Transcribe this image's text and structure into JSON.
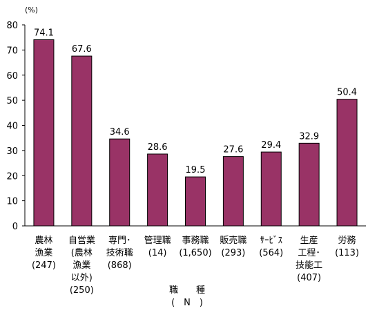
{
  "chart_data": {
    "type": "bar",
    "unit": "(%)",
    "categories": [
      {
        "lines": [
          "農林",
          "漁業",
          "(247)"
        ]
      },
      {
        "lines": [
          "自営業",
          "(農林",
          "漁業",
          "以外)",
          "(250)"
        ]
      },
      {
        "lines": [
          "専門･",
          "技術職",
          "(868)"
        ]
      },
      {
        "lines": [
          "管理職",
          "(14)"
        ]
      },
      {
        "lines": [
          "事務職",
          "(1,650)"
        ]
      },
      {
        "lines": [
          "販売職",
          "(293)"
        ]
      },
      {
        "lines": [
          "ｻｰﾋﾞｽ",
          "(564)"
        ]
      },
      {
        "lines": [
          "生産",
          "工程･",
          "技能工",
          "(407)"
        ]
      },
      {
        "lines": [
          "労務",
          "(113)"
        ]
      }
    ],
    "values": [
      74.1,
      67.6,
      34.6,
      28.6,
      19.5,
      27.6,
      29.4,
      32.9,
      50.4
    ],
    "value_labels": [
      "74.1",
      "67.6",
      "34.6",
      "28.6",
      "19.5",
      "27.6",
      "29.4",
      "32.9",
      "50.4"
    ],
    "xlabel": "職　　種",
    "xlabel_sub": "(　N　)",
    "ylim": [
      0,
      80
    ],
    "yticks": [
      "0",
      "10",
      "20",
      "30",
      "40",
      "50",
      "60",
      "70",
      "80"
    ],
    "grid": false,
    "bar_color": "#993366"
  }
}
